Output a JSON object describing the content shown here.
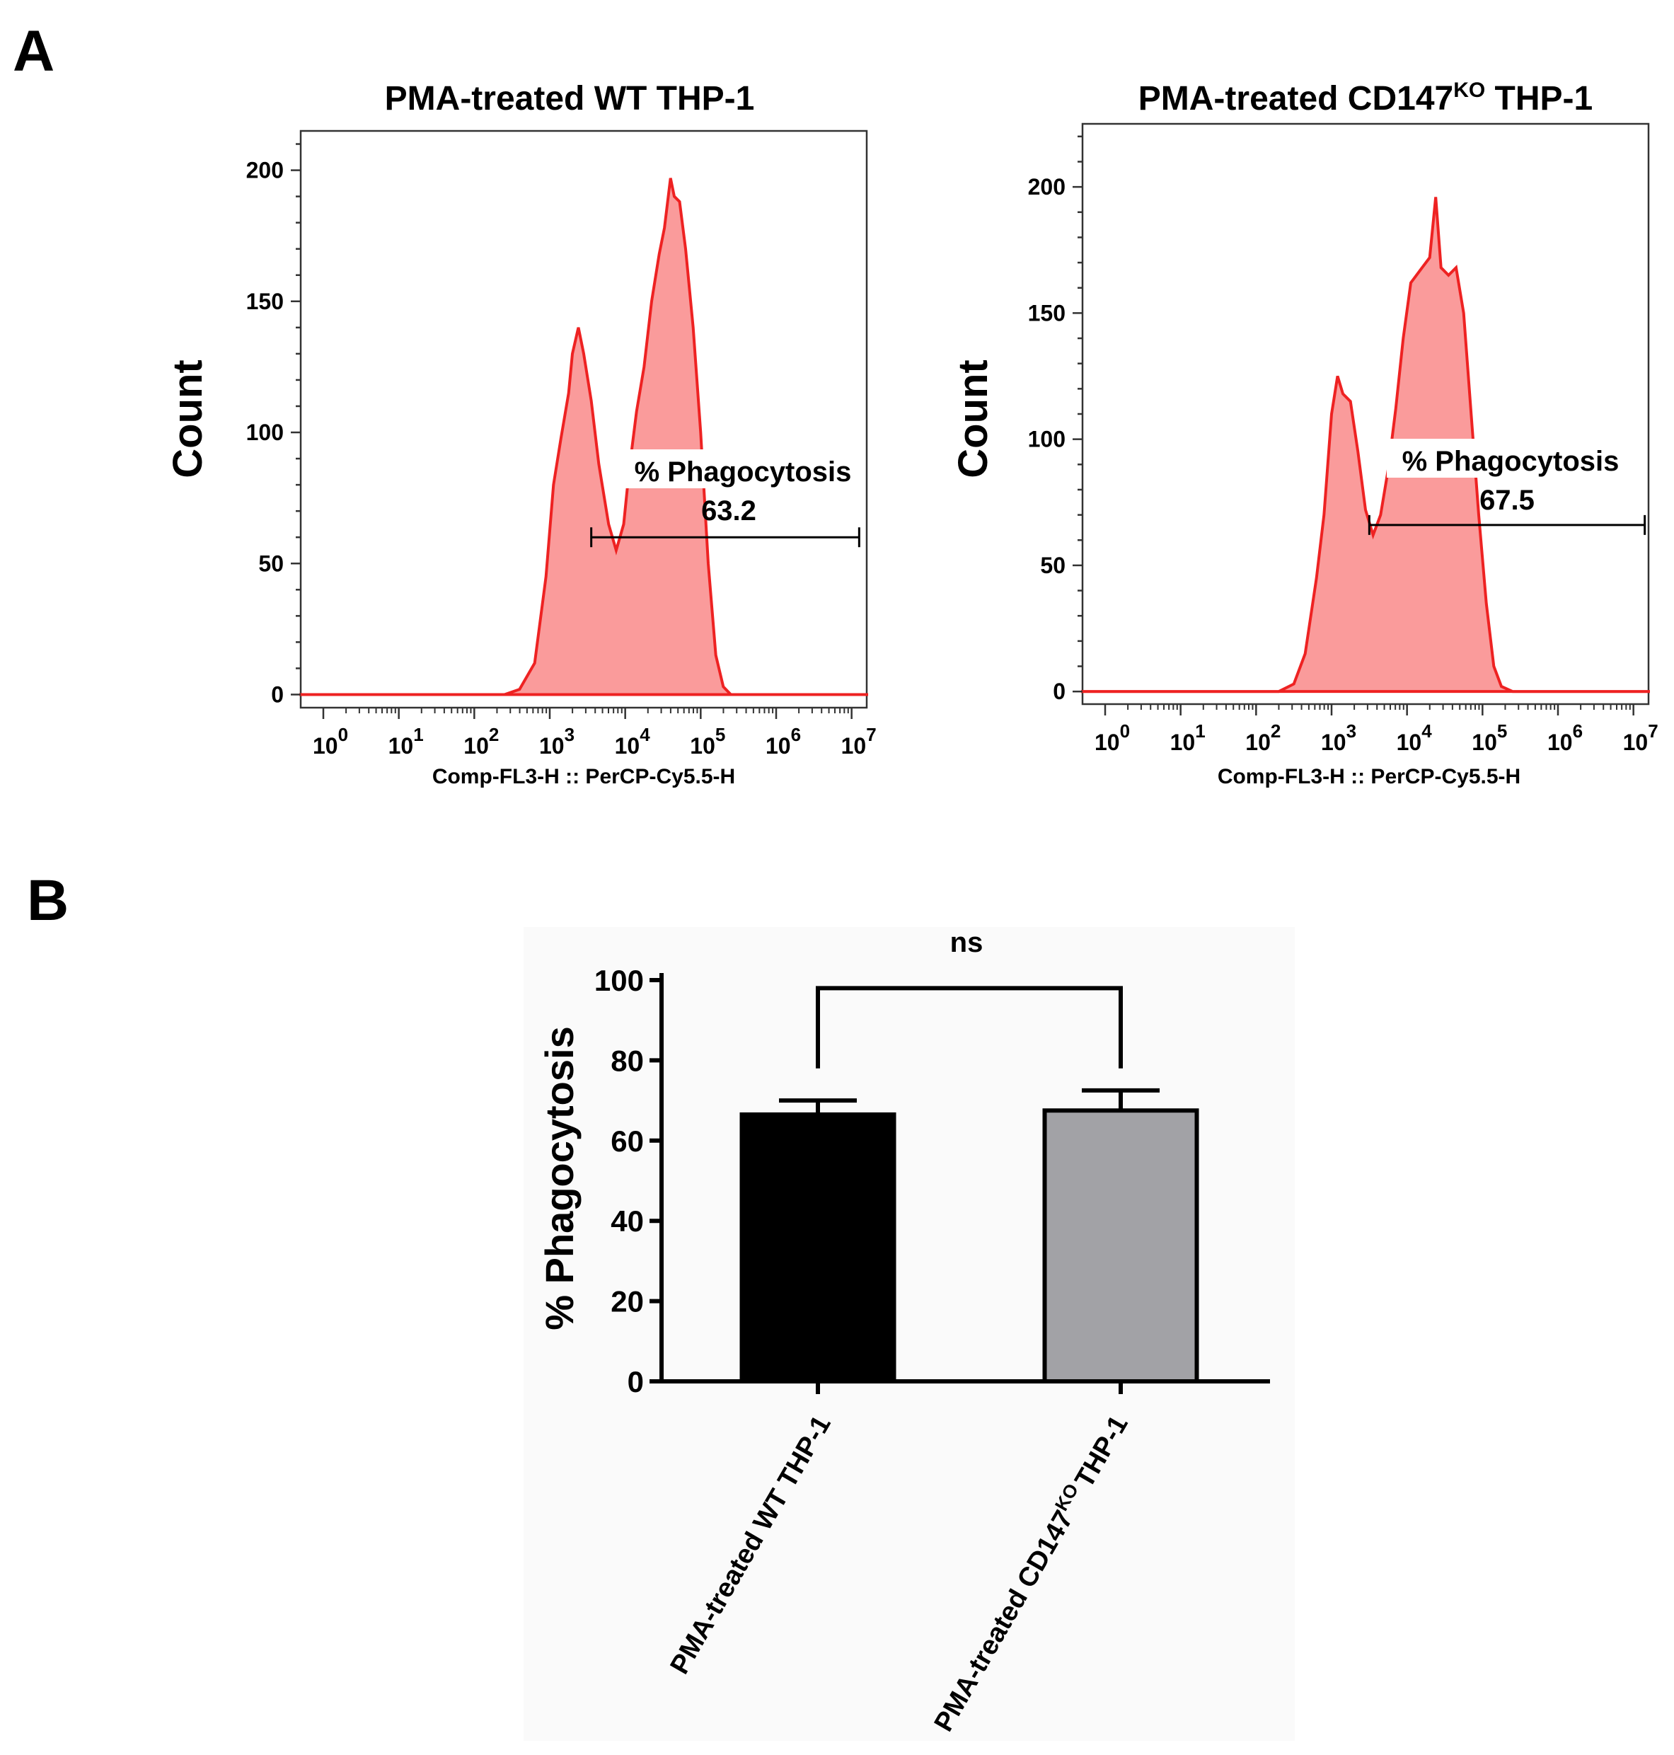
{
  "panels": [
    {
      "letter": "A"
    },
    {
      "letter": "B"
    }
  ],
  "chart_data": [
    {
      "type": "area",
      "title": "PMA-treated WT THP-1",
      "xlabel": "Comp-FL3-H :: PerCP-Cy5.5-H",
      "ylabel": "Count",
      "x_scale": "log10",
      "xlim": [
        -0.3,
        7.2
      ],
      "ylim": [
        -5,
        215
      ],
      "y_ticks": [
        0,
        50,
        100,
        150,
        200
      ],
      "x_ticks": [
        {
          "base": "10",
          "exp": "0"
        },
        {
          "base": "10",
          "exp": "1"
        },
        {
          "base": "10",
          "exp": "2"
        },
        {
          "base": "10",
          "exp": "3"
        },
        {
          "base": "10",
          "exp": "4"
        },
        {
          "base": "10",
          "exp": "5"
        },
        {
          "base": "10",
          "exp": "6"
        },
        {
          "base": "10",
          "exp": "7"
        }
      ],
      "gate": {
        "label": "% Phagocytosis",
        "value": "63.2",
        "x_start_log": 3.55,
        "x_end_log": 7.1,
        "y": 60
      },
      "series": [
        {
          "name": "PMA-treated WT THP-1",
          "color": "#ee2222",
          "fill": "#fa9b9b",
          "points": [
            [
              -0.3,
              0
            ],
            [
              2.4,
              0
            ],
            [
              2.6,
              2
            ],
            [
              2.8,
              12
            ],
            [
              2.95,
              45
            ],
            [
              3.05,
              80
            ],
            [
              3.15,
              98
            ],
            [
              3.25,
              115
            ],
            [
              3.3,
              130
            ],
            [
              3.38,
              140
            ],
            [
              3.45,
              130
            ],
            [
              3.55,
              112
            ],
            [
              3.65,
              88
            ],
            [
              3.78,
              65
            ],
            [
              3.88,
              55
            ],
            [
              3.98,
              65
            ],
            [
              4.05,
              85
            ],
            [
              4.15,
              108
            ],
            [
              4.25,
              125
            ],
            [
              4.35,
              150
            ],
            [
              4.45,
              168
            ],
            [
              4.52,
              178
            ],
            [
              4.6,
              197
            ],
            [
              4.65,
              190
            ],
            [
              4.72,
              188
            ],
            [
              4.8,
              170
            ],
            [
              4.9,
              140
            ],
            [
              5.0,
              100
            ],
            [
              5.1,
              50
            ],
            [
              5.2,
              15
            ],
            [
              5.3,
              3
            ],
            [
              5.4,
              0
            ],
            [
              7.2,
              0
            ]
          ]
        }
      ]
    },
    {
      "type": "area",
      "title": "PMA-treated CD147",
      "title_superscript": "KO",
      "title_suffix": " THP-1",
      "xlabel": "Comp-FL3-H :: PerCP-Cy5.5-H",
      "ylabel": "Count",
      "x_scale": "log10",
      "xlim": [
        -0.3,
        7.2
      ],
      "ylim": [
        -5,
        225
      ],
      "y_ticks": [
        0,
        50,
        100,
        150,
        200
      ],
      "x_ticks": [
        {
          "base": "10",
          "exp": "0"
        },
        {
          "base": "10",
          "exp": "1"
        },
        {
          "base": "10",
          "exp": "2"
        },
        {
          "base": "10",
          "exp": "3"
        },
        {
          "base": "10",
          "exp": "4"
        },
        {
          "base": "10",
          "exp": "5"
        },
        {
          "base": "10",
          "exp": "6"
        },
        {
          "base": "10",
          "exp": "7"
        }
      ],
      "gate": {
        "label": "% Phagocytosis",
        "value": "67.5",
        "x_start_log": 3.5,
        "x_end_log": 7.15,
        "y": 66
      },
      "series": [
        {
          "name": "PMA-treated CD147KO THP-1",
          "color": "#ee2222",
          "fill": "#fa9b9b",
          "points": [
            [
              -0.3,
              0
            ],
            [
              2.3,
              0
            ],
            [
              2.5,
              3
            ],
            [
              2.65,
              15
            ],
            [
              2.8,
              45
            ],
            [
              2.9,
              70
            ],
            [
              3.0,
              110
            ],
            [
              3.08,
              125
            ],
            [
              3.15,
              118
            ],
            [
              3.25,
              115
            ],
            [
              3.35,
              95
            ],
            [
              3.45,
              72
            ],
            [
              3.55,
              62
            ],
            [
              3.65,
              70
            ],
            [
              3.75,
              88
            ],
            [
              3.85,
              112
            ],
            [
              3.95,
              140
            ],
            [
              4.05,
              162
            ],
            [
              4.2,
              168
            ],
            [
              4.3,
              172
            ],
            [
              4.38,
              196
            ],
            [
              4.45,
              168
            ],
            [
              4.55,
              165
            ],
            [
              4.65,
              168
            ],
            [
              4.75,
              150
            ],
            [
              4.85,
              110
            ],
            [
              4.95,
              70
            ],
            [
              5.05,
              35
            ],
            [
              5.15,
              10
            ],
            [
              5.25,
              2
            ],
            [
              5.4,
              0
            ],
            [
              7.2,
              0
            ]
          ]
        }
      ]
    },
    {
      "type": "bar",
      "title": "",
      "xlabel": "",
      "ylabel": "% Phagocytosis",
      "ylim": [
        0,
        100
      ],
      "y_ticks": [
        0,
        20,
        40,
        60,
        80,
        100
      ],
      "categories": [
        {
          "label": "PMA-treated WT THP-1",
          "superscript": "",
          "suffix": ""
        },
        {
          "label": "PMA-treated CD147",
          "superscript": "KO",
          "suffix": "THP-1"
        }
      ],
      "values": [
        66.5,
        67.5
      ],
      "errors": [
        3.5,
        5.0
      ],
      "colors": [
        "#000000",
        "#a2a2a6"
      ],
      "significance": {
        "label": "ns",
        "between": [
          0,
          1
        ],
        "y": 98
      }
    }
  ]
}
